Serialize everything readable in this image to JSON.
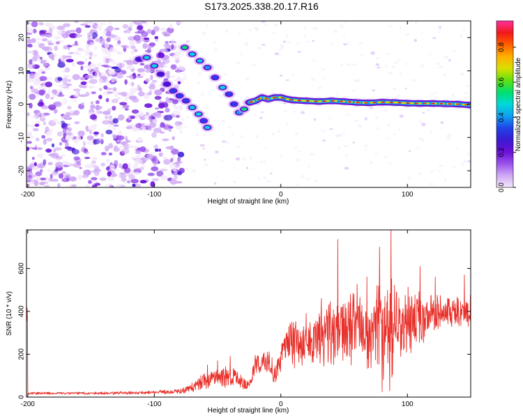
{
  "title": "S173.2025.338.20.17.R16",
  "colors": {
    "signal": "#e8312b",
    "axis": "#000000",
    "background": "#ffffff"
  },
  "chart_data": [
    {
      "type": "heatmap",
      "name": "spectrogram",
      "xlabel": "Height of straight line (km)",
      "ylabel": "Frequency (Hz)",
      "xlim": [
        -201,
        150
      ],
      "ylim": [
        -25,
        25
      ],
      "xticks": [
        -200,
        -100,
        0,
        100
      ],
      "yticks": [
        -20,
        -10,
        0,
        10,
        20
      ],
      "colorbar": {
        "label": "Normalized spectral amplitude",
        "range": [
          0,
          0.95
        ],
        "ticks": [
          "0.0",
          "0.2",
          "0.4",
          "0.6",
          "0.8"
        ],
        "colormap": [
          "#f4e8fb",
          "#cfa8f5",
          "#9a52ec",
          "#6a10d8",
          "#3a1ad0",
          "#1f44e8",
          "#0fa0f0",
          "#00d8d8",
          "#00e070",
          "#60e010",
          "#d8e000",
          "#ffb000",
          "#ff6000",
          "#f21818",
          "#ff30a0"
        ]
      },
      "noise_region_km": [
        -201,
        -78
      ],
      "ridge": [
        {
          "x": -112,
          "y": 13.5
        },
        {
          "x": -106,
          "y": 14
        },
        {
          "x": -100,
          "y": 11.5
        },
        {
          "x": -95,
          "y": 9
        },
        {
          "x": -90,
          "y": 6
        },
        {
          "x": -85,
          "y": 4
        },
        {
          "x": -80,
          "y": 2.5
        },
        {
          "x": -75,
          "y": 1
        },
        {
          "x": -70,
          "y": -1
        },
        {
          "x": -65,
          "y": -3
        },
        {
          "x": -61,
          "y": -5
        },
        {
          "x": -58,
          "y": -7
        },
        {
          "x": -76,
          "y": 17
        },
        {
          "x": -70,
          "y": 15
        },
        {
          "x": -64,
          "y": 13
        },
        {
          "x": -58,
          "y": 11
        },
        {
          "x": -52,
          "y": 8
        },
        {
          "x": -46,
          "y": 5
        },
        {
          "x": -41,
          "y": 3
        },
        {
          "x": -37,
          "y": 0
        },
        {
          "x": -33,
          "y": -2.5
        },
        {
          "x": -29,
          "y": -1.5
        },
        {
          "x": -25,
          "y": 0.5
        },
        {
          "x": -20,
          "y": 1
        },
        {
          "x": -15,
          "y": 2
        },
        {
          "x": -10,
          "y": 1.5
        },
        {
          "x": -5,
          "y": 2
        },
        {
          "x": 0,
          "y": 2
        },
        {
          "x": 5,
          "y": 1.5
        },
        {
          "x": 10,
          "y": 1.2
        },
        {
          "x": 20,
          "y": 1
        },
        {
          "x": 30,
          "y": 0.8
        },
        {
          "x": 40,
          "y": 1
        },
        {
          "x": 50,
          "y": 0.8
        },
        {
          "x": 60,
          "y": 0.5
        },
        {
          "x": 70,
          "y": 0.4
        },
        {
          "x": 80,
          "y": 0.6
        },
        {
          "x": 90,
          "y": 0.5
        },
        {
          "x": 100,
          "y": 0.3
        },
        {
          "x": 110,
          "y": 0.2
        },
        {
          "x": 120,
          "y": 0.2
        },
        {
          "x": 130,
          "y": 0.1
        },
        {
          "x": 140,
          "y": 0.0
        },
        {
          "x": 150,
          "y": -0.3
        }
      ]
    },
    {
      "type": "line",
      "name": "snr",
      "xlabel": "Height of straight line (km)",
      "ylabel": "SNR (10 * v/v)",
      "xlim": [
        -201,
        150
      ],
      "ylim": [
        0,
        780
      ],
      "xticks": [
        -200,
        -100,
        0,
        100
      ],
      "yticks": [
        0,
        200,
        400,
        600
      ],
      "series": [
        {
          "name": "SNR",
          "envelope_x": [
            -200,
            -160,
            -120,
            -100,
            -90,
            -80,
            -70,
            -65,
            -55,
            -45,
            -35,
            -25,
            -20,
            -10,
            -5,
            0,
            5,
            10,
            20,
            30,
            40,
            50,
            60,
            70,
            80,
            90,
            100,
            110,
            120,
            130,
            140,
            150
          ],
          "envelope_mean": [
            18,
            18,
            20,
            22,
            24,
            26,
            45,
            60,
            85,
            95,
            80,
            55,
            150,
            170,
            110,
            175,
            240,
            250,
            260,
            270,
            300,
            330,
            330,
            320,
            320,
            320,
            350,
            370,
            380,
            390,
            400,
            410
          ],
          "envelope_amp": [
            6,
            6,
            7,
            8,
            9,
            11,
            22,
            35,
            45,
            55,
            45,
            20,
            45,
            60,
            55,
            60,
            80,
            100,
            110,
            130,
            160,
            170,
            170,
            190,
            220,
            200,
            140,
            110,
            90,
            80,
            70,
            70
          ],
          "spikes": [
            {
              "x": -58,
              "y": 150
            },
            {
              "x": -50,
              "y": 170
            },
            {
              "x": -40,
              "y": 190
            },
            {
              "x": -20,
              "y": 175
            },
            {
              "x": 5,
              "y": 300
            },
            {
              "x": 20,
              "y": 390
            },
            {
              "x": 32,
              "y": 460
            },
            {
              "x": 45,
              "y": 735
            },
            {
              "x": 55,
              "y": 480
            },
            {
              "x": 68,
              "y": 560
            },
            {
              "x": 78,
              "y": 700
            },
            {
              "x": 80,
              "y": 25
            },
            {
              "x": 87,
              "y": 785
            },
            {
              "x": 86,
              "y": 30
            },
            {
              "x": 110,
              "y": 610
            },
            {
              "x": 122,
              "y": 560
            },
            {
              "x": 145,
              "y": 570
            }
          ]
        }
      ]
    }
  ]
}
